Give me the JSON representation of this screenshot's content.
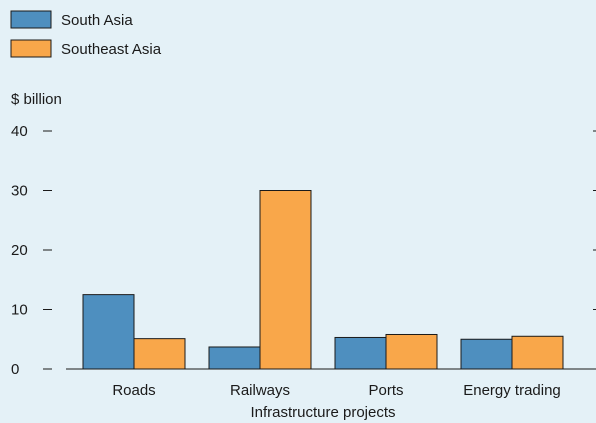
{
  "colors": {
    "south_asia": "#4e8fbf",
    "southeast_asia": "#f9a74a",
    "background": "#e4f1f7"
  },
  "chart_data": {
    "type": "bar",
    "title": "",
    "ylabel": "$ billion",
    "xlabel": "Infrastructure projects",
    "categories": [
      "Roads",
      "Railways",
      "Ports",
      "Energy trading"
    ],
    "series": [
      {
        "name": "South Asia",
        "values": [
          12.5,
          3.7,
          5.3,
          5.0
        ]
      },
      {
        "name": "Southeast Asia",
        "values": [
          5.1,
          30.0,
          5.8,
          5.5
        ]
      }
    ],
    "ylim": [
      0,
      40
    ],
    "yticks": [
      0,
      10,
      20,
      30,
      40
    ],
    "grid": false,
    "legend_position": "top-left"
  }
}
